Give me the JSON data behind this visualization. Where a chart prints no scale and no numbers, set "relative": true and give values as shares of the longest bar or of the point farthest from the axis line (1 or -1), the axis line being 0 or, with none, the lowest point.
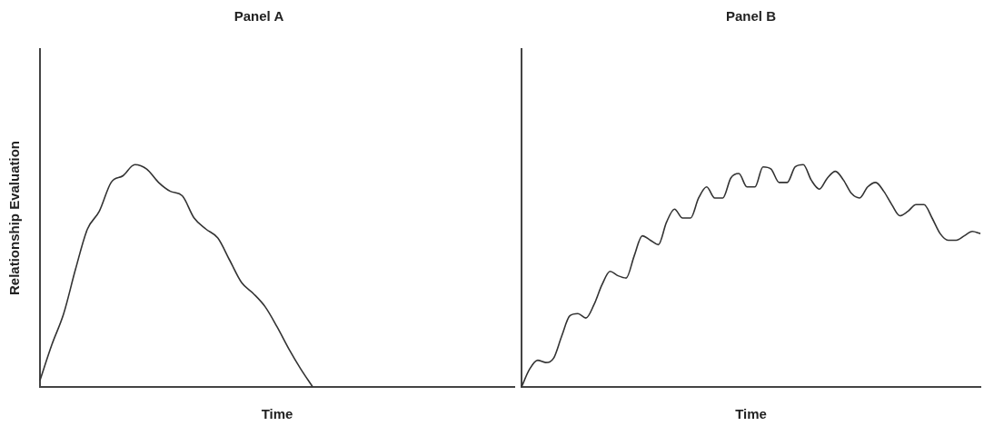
{
  "chart_data": [
    {
      "type": "line",
      "title": "Panel A",
      "xlabel": "Time",
      "ylabel": "Relationship Evaluation",
      "relative": true,
      "grid": false,
      "legend": false,
      "marker": "none",
      "line_style": "solid",
      "categories": [
        null,
        null,
        null,
        null,
        null,
        null,
        null,
        null,
        null,
        null,
        null,
        null,
        null,
        null,
        null,
        null,
        null,
        null,
        null,
        null,
        null,
        null,
        null,
        null,
        null,
        null,
        null,
        null,
        null,
        null,
        null,
        null,
        null,
        null,
        null,
        null,
        null,
        null,
        null,
        null,
        null
      ],
      "series": [
        {
          "color": "#333333",
          "values": [
            0.03,
            0.19,
            0.33,
            0.53,
            0.71,
            0.79,
            0.92,
            0.95,
            1,
            0.98,
            0.92,
            0.88,
            0.86,
            0.76,
            0.71,
            0.67,
            0.57,
            0.47,
            0.42,
            0.36,
            0.27,
            0.17,
            0.08,
            0,
            null,
            null,
            null,
            null,
            null,
            null,
            null,
            null,
            null,
            null,
            null,
            null,
            null,
            null,
            null,
            null,
            null
          ]
        }
      ]
    },
    {
      "type": "line",
      "title": "Panel B",
      "xlabel": "Time",
      "relative": true,
      "grid": false,
      "legend": false,
      "marker": "none",
      "line_style": "solid",
      "categories": [
        null,
        null,
        null,
        null,
        null,
        null,
        null,
        null,
        null,
        null,
        null,
        null,
        null,
        null,
        null,
        null,
        null,
        null,
        null,
        null,
        null,
        null,
        null,
        null,
        null,
        null,
        null,
        null,
        null,
        null,
        null,
        null,
        null,
        null,
        null,
        null,
        null,
        null,
        null,
        null,
        null,
        null,
        null,
        null,
        null,
        null,
        null,
        null,
        null,
        null,
        null,
        null,
        null,
        null,
        null,
        null,
        null,
        null
      ],
      "series": [
        {
          "color": "#333333",
          "values": [
            0,
            0.08,
            0.12,
            0.11,
            0.13,
            0.23,
            0.32,
            0.33,
            0.31,
            0.37,
            0.46,
            0.52,
            0.5,
            0.49,
            0.59,
            0.68,
            0.66,
            0.64,
            0.74,
            0.8,
            0.76,
            0.76,
            0.85,
            0.9,
            0.85,
            0.85,
            0.94,
            0.96,
            0.9,
            0.9,
            0.99,
            0.98,
            0.92,
            0.92,
            0.99,
            1,
            0.93,
            0.89,
            0.94,
            0.97,
            0.93,
            0.87,
            0.85,
            0.9,
            0.92,
            0.88,
            0.82,
            0.77,
            0.79,
            0.82,
            0.82,
            0.76,
            0.69,
            0.66,
            0.66,
            0.68,
            0.7,
            0.69
          ]
        }
      ]
    }
  ]
}
